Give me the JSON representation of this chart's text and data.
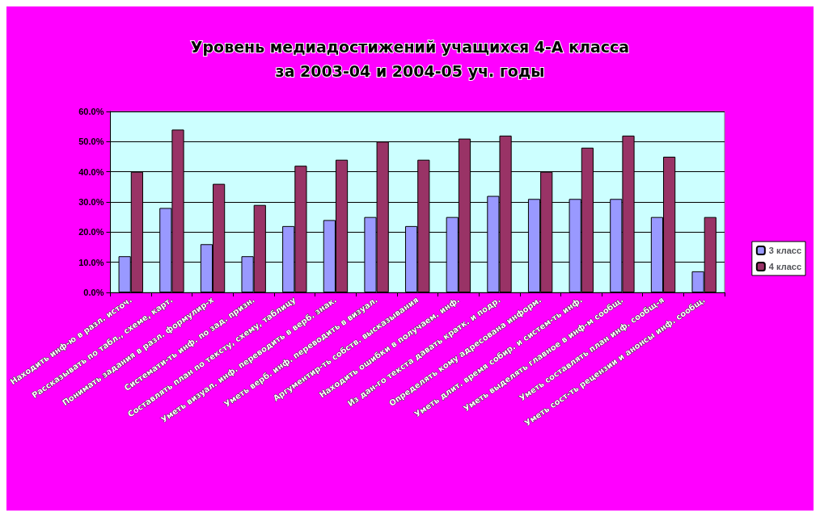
{
  "chart_data": {
    "type": "bar",
    "title": "Уровень медиадостижений учащихся 4-А класса\nза 2003-04 и 2004-05 уч. годы",
    "categories": [
      "Находить инф-ю в разл. источ.",
      "Рассказывать по табл., схеме, карт.",
      "Понимать задания в разл. формулир-х",
      "Системати-ть инф. по зад. призн.",
      "Составлять план по тексту, схему, таблицу",
      "Уметь визуал. инф. переводить в верб. знак.",
      "Уметь верб. инф. переводить в визуал.",
      "Аргументир-ть собств. высказывания",
      "Находить ошибки в получаем. инф.",
      "Из дан-го текста давать кратк. и подр.",
      "Определять кому адресована информ.",
      "Уметь длит. время собир. и систем-ть инф.",
      "Уметь выделять главное в инф-м сообщ.",
      "Уметь составлять план инф. сообщ-я",
      "Уметь сост-ть рецензии и анонсы инф. сообщ."
    ],
    "series": [
      {
        "name": "3 класс",
        "color": "#9999ff",
        "values": [
          12,
          28,
          16,
          12,
          22,
          24,
          25,
          22,
          25,
          32,
          31,
          31,
          31,
          25,
          7
        ]
      },
      {
        "name": "4 класс",
        "color": "#993366",
        "values": [
          40,
          54,
          36,
          29,
          42,
          44,
          50,
          44,
          51,
          52,
          40,
          48,
          52,
          45,
          25
        ]
      }
    ],
    "ylim": [
      0,
      60
    ],
    "yticks": [
      {
        "value": 0,
        "label": "0.0%"
      },
      {
        "value": 10,
        "label": "10.0%"
      },
      {
        "value": 20,
        "label": "20.0%"
      },
      {
        "value": 30,
        "label": "30.0%"
      },
      {
        "value": 40,
        "label": "40.0%"
      },
      {
        "value": 50,
        "label": "50.0%"
      },
      {
        "value": 60,
        "label": "60.0%"
      }
    ],
    "grid": "y",
    "legend": "right"
  }
}
